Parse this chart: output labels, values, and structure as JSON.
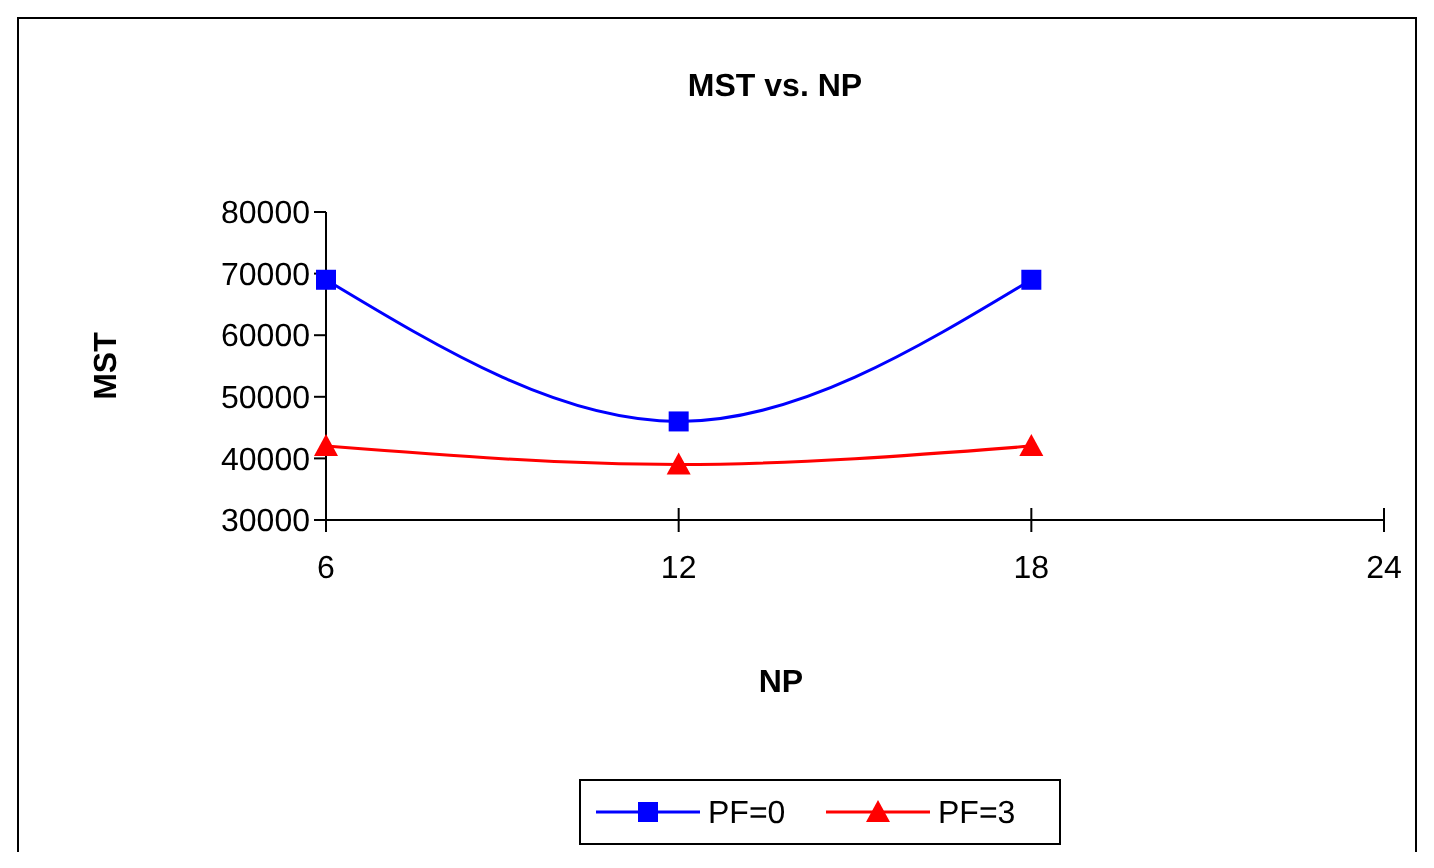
{
  "chart_data": {
    "type": "line",
    "title": "MST vs. NP",
    "xlabel": "NP",
    "ylabel": "MST",
    "x": [
      6,
      12,
      18
    ],
    "series": [
      {
        "name": "PF=0",
        "color": "#0000ff",
        "values": [
          69000,
          46000,
          69000
        ],
        "marker": "square"
      },
      {
        "name": "PF=3",
        "color": "#ff0000",
        "values": [
          42000,
          39000,
          42000
        ],
        "marker": "triangle"
      }
    ],
    "xlim": [
      6,
      24
    ],
    "xticks": [
      6,
      12,
      18,
      24
    ],
    "ylim": [
      30000,
      80000
    ],
    "yticks": [
      30000,
      40000,
      50000,
      60000,
      70000,
      80000
    ],
    "grid": false,
    "legend": "bottom",
    "line_style": "solid"
  }
}
